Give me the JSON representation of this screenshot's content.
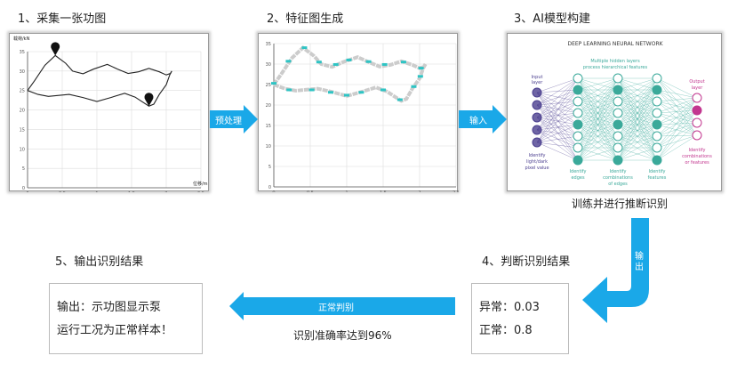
{
  "steps": {
    "s1": "1、采集一张功图",
    "s2": "2、特征图生成",
    "s3": "3、AI模型构建",
    "s4": "4、判断识别结果",
    "s5": "5、输出识别结果"
  },
  "chart1": {
    "ylabel": "载荷/kN",
    "xlabel": "位移/m",
    "yticks": [
      "0",
      "5",
      "10",
      "15",
      "20",
      "25",
      "30",
      "35"
    ],
    "xticks": [
      "0",
      "0.5",
      "1",
      "1.5",
      "2",
      "2.5"
    ]
  },
  "chart2": {
    "yticks": [
      "0",
      "5",
      "10",
      "15",
      "20",
      "25",
      "30",
      "35"
    ],
    "xticks": [
      "0",
      "0.5",
      "1",
      "1.5",
      "2",
      "2.5"
    ],
    "highlight_color": "#2ec4c4"
  },
  "nn": {
    "title": "DEEP LEARNING NEURAL NETWORK",
    "hidden": "Multiple hidden layers",
    "hidden2": "process hierarchical features",
    "input": "Input",
    "input2": "layer",
    "output": "Output",
    "output2": "layer",
    "id_pixel": "Identify",
    "id_pixel2": "light/dark",
    "id_pixel3": "pixel value",
    "id_edges": "Identify",
    "id_edges2": "edges",
    "id_comb": "Identify",
    "id_comb2": "combinations",
    "id_comb3": "of edges",
    "id_feat": "Identify",
    "id_feat2": "features",
    "id_out": "Identify",
    "id_out2": "combinations",
    "id_out3": "or features",
    "colors": {
      "input": "#4b3f8f",
      "hidden": "#3aa99a",
      "output": "#c2368f"
    }
  },
  "arrows": {
    "preprocess": "预处理",
    "input": "输入",
    "output": "输出",
    "normal": "正常判别",
    "color": "#1aa8e8"
  },
  "train_label": "训练并进行推断识别",
  "accuracy": "识别准确率达到96%",
  "result": {
    "abnormal": "异常：0.03",
    "normal": "正常：0.8"
  },
  "output_text": {
    "line1": "输出：示功图显示泵",
    "line2": "运行工况为正常样本！"
  }
}
